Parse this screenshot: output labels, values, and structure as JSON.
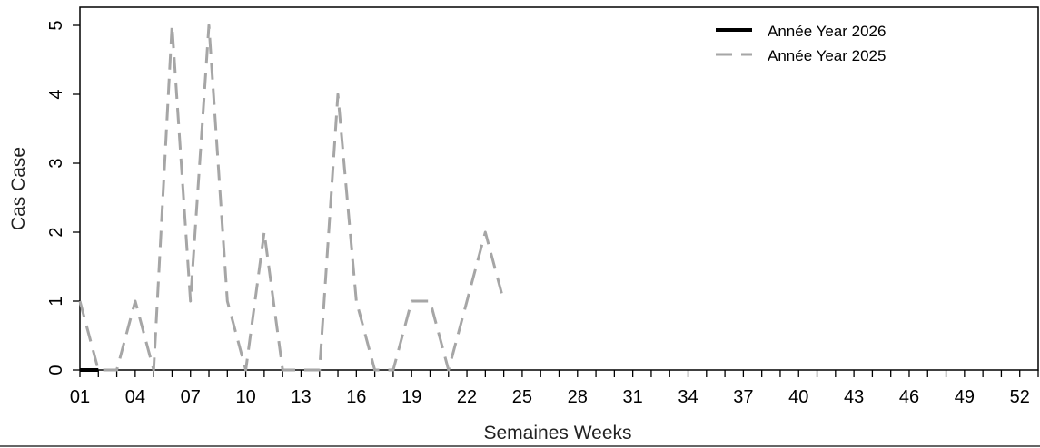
{
  "chart_data": {
    "type": "line",
    "xlabel": "Semaines Weeks",
    "ylabel": "Cas Case",
    "xlim": [
      1,
      53
    ],
    "ylim": [
      0,
      5.25
    ],
    "x_tick_labels": [
      "01",
      "04",
      "07",
      "10",
      "13",
      "16",
      "19",
      "22",
      "25",
      "28",
      "31",
      "34",
      "37",
      "40",
      "43",
      "46",
      "49",
      "52"
    ],
    "x_tick_values": [
      1,
      4,
      7,
      10,
      13,
      16,
      19,
      22,
      25,
      28,
      31,
      34,
      37,
      40,
      43,
      46,
      49,
      52
    ],
    "y_ticks": [
      0,
      1,
      2,
      3,
      4,
      5
    ],
    "y_tick_labels": [
      "0",
      "1",
      "2",
      "3",
      "4",
      "5"
    ],
    "legend_position": "top-right",
    "series": [
      {
        "name": "Année Year 2026",
        "style": "solid",
        "color": "#000000",
        "x": [
          1,
          2
        ],
        "y": [
          0,
          0
        ]
      },
      {
        "name": "Année Year 2025",
        "style": "dashed",
        "color": "#a6a6a6",
        "x": [
          1,
          2,
          3,
          4,
          5,
          6,
          7,
          8,
          9,
          10,
          11,
          12,
          13,
          14,
          15,
          16,
          17,
          18,
          19,
          20,
          21,
          22,
          23,
          24
        ],
        "y": [
          1,
          0,
          0,
          1,
          0,
          5,
          1,
          5,
          1,
          0,
          2,
          0,
          0,
          0,
          4,
          1,
          0,
          0,
          1,
          1,
          0,
          1,
          2,
          1
        ]
      }
    ]
  }
}
